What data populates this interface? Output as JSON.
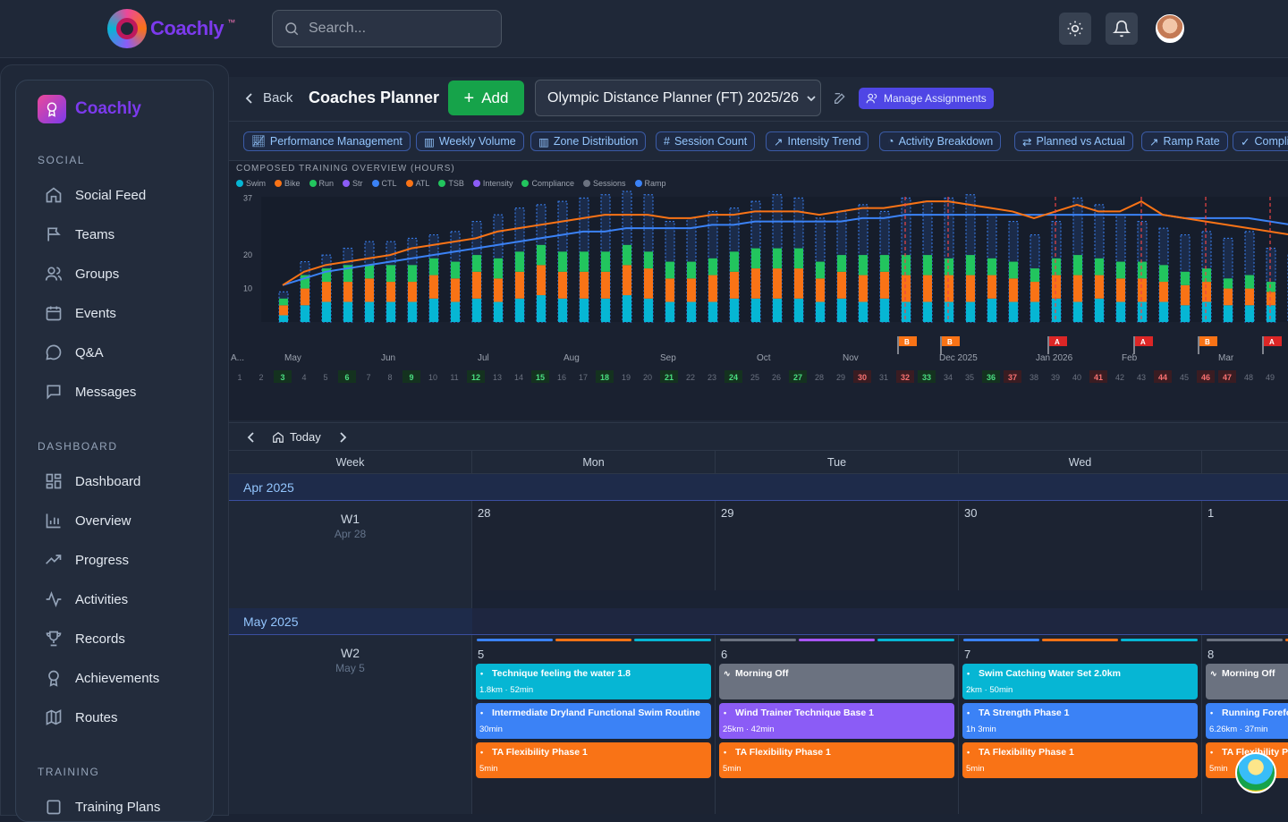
{
  "app": {
    "name": "Coachly",
    "tm": "™"
  },
  "search": {
    "placeholder": "Search..."
  },
  "sidebar": {
    "brand": "Coachly",
    "sections": [
      {
        "title": "SOCIAL",
        "items": [
          "Social Feed",
          "Teams",
          "Groups",
          "Events",
          "Q&A",
          "Messages"
        ]
      },
      {
        "title": "DASHBOARD",
        "items": [
          "Dashboard",
          "Overview",
          "Progress",
          "Activities",
          "Records",
          "Achievements",
          "Routes"
        ]
      },
      {
        "title": "TRAINING",
        "items": [
          "Training Plans"
        ]
      }
    ]
  },
  "planner": {
    "back_label": "Back",
    "title": "Coaches Planner",
    "add_label": "Add",
    "selected_plan": "Olympic Distance Planner (FT) 2025/26",
    "manage_label": "Manage Assignments"
  },
  "chips": [
    "Performance Management",
    "Weekly Volume",
    "Zone Distribution",
    "Session Count",
    "Intensity Trend",
    "Activity Breakdown",
    "Planned vs Actual",
    "Ramp Rate",
    "Compliance"
  ],
  "chart_data": {
    "type": "bar",
    "title": "COMPOSED TRAINING OVERVIEW (HOURS)",
    "legend": [
      {
        "name": "Swim",
        "color": "#06b6d4"
      },
      {
        "name": "Bike",
        "color": "#f97316"
      },
      {
        "name": "Run",
        "color": "#22c55e"
      },
      {
        "name": "Str",
        "color": "#8b5cf6"
      },
      {
        "name": "CTL",
        "color": "#3b82f6"
      },
      {
        "name": "ATL",
        "color": "#f97316"
      },
      {
        "name": "TSB",
        "color": "#22c55e"
      },
      {
        "name": "Intensity",
        "color": "#8b5cf6"
      },
      {
        "name": "Compliance",
        "color": "#22c55e"
      },
      {
        "name": "Sessions",
        "color": "#6b7280"
      },
      {
        "name": "Ramp",
        "color": "#3b82f6"
      }
    ],
    "yticks": [
      37,
      20,
      10
    ],
    "ylim": [
      0,
      40
    ],
    "weeks": [
      1,
      2,
      3,
      4,
      5,
      6,
      7,
      8,
      9,
      10,
      11,
      12,
      13,
      14,
      15,
      16,
      17,
      18,
      19,
      20,
      21,
      22,
      23,
      24,
      25,
      26,
      27,
      28,
      29,
      30,
      31,
      32,
      33,
      34,
      35,
      36,
      37,
      38,
      39,
      40,
      41,
      42,
      43,
      44,
      45,
      46,
      47,
      48,
      49
    ],
    "planned": [
      9,
      18,
      20,
      22,
      24,
      24,
      25,
      26,
      27,
      30,
      32,
      34,
      35,
      36,
      37,
      38,
      39,
      38,
      30,
      31,
      33,
      34,
      36,
      38,
      37,
      31,
      33,
      35,
      33,
      37,
      36,
      37,
      38,
      32,
      30,
      26,
      30,
      37,
      35,
      32,
      30,
      28,
      26,
      27,
      25,
      27,
      22,
      20,
      20
    ],
    "swim": [
      2,
      5,
      6,
      6,
      6,
      6,
      6,
      7,
      6,
      7,
      6,
      7,
      8,
      7,
      7,
      7,
      8,
      7,
      6,
      6,
      6,
      7,
      7,
      7,
      7,
      6,
      7,
      6,
      7,
      6,
      6,
      6,
      6,
      7,
      6,
      6,
      7,
      6,
      7,
      6,
      6,
      6,
      5,
      6,
      5,
      5,
      5,
      5,
      5
    ],
    "bike": [
      3,
      5,
      6,
      6,
      7,
      6,
      6,
      7,
      7,
      8,
      7,
      8,
      9,
      8,
      8,
      8,
      9,
      9,
      7,
      7,
      8,
      8,
      9,
      9,
      9,
      7,
      8,
      8,
      8,
      8,
      8,
      8,
      8,
      7,
      7,
      6,
      7,
      8,
      7,
      7,
      7,
      6,
      6,
      6,
      5,
      5,
      4,
      4,
      4
    ],
    "run": [
      2,
      4,
      4,
      5,
      4,
      5,
      5,
      5,
      5,
      5,
      6,
      6,
      6,
      6,
      6,
      6,
      6,
      5,
      5,
      5,
      5,
      6,
      6,
      6,
      6,
      5,
      5,
      6,
      5,
      6,
      6,
      5,
      6,
      5,
      5,
      4,
      5,
      6,
      5,
      5,
      5,
      5,
      4,
      4,
      3,
      4,
      3,
      3,
      3
    ],
    "ctl": [
      11,
      13,
      15,
      16,
      17,
      18,
      19,
      20,
      21,
      22,
      23,
      24,
      25,
      26,
      27,
      27,
      28,
      28,
      28,
      28,
      29,
      29,
      30,
      30,
      30,
      30,
      30,
      31,
      31,
      32,
      32,
      32,
      32,
      32,
      32,
      32,
      32,
      32,
      32,
      32,
      32,
      32,
      31,
      31,
      31,
      31,
      30,
      29,
      28
    ],
    "atl": [
      11,
      15,
      17,
      18,
      19,
      20,
      22,
      23,
      24,
      25,
      27,
      28,
      29,
      30,
      31,
      32,
      32,
      32,
      31,
      31,
      32,
      32,
      33,
      33,
      33,
      32,
      33,
      34,
      34,
      35,
      36,
      36,
      35,
      34,
      33,
      31,
      33,
      35,
      33,
      33,
      36,
      32,
      31,
      30,
      29,
      28,
      27,
      26,
      26
    ],
    "sessions_x_labels": [
      "A...",
      "May",
      "Jun",
      "Jul",
      "Aug",
      "Sep",
      "Oct",
      "Nov",
      "Dec 2025",
      "Jan 2026",
      "Feb",
      "Mar"
    ],
    "flags": [
      {
        "week": 30,
        "label": "B"
      },
      {
        "week": 32,
        "label": "B"
      },
      {
        "week": 37,
        "label": "A"
      },
      {
        "week": 41,
        "label": "A"
      },
      {
        "week": 44,
        "label": "B"
      },
      {
        "week": 47,
        "label": "A"
      }
    ],
    "highlight_weeks_green": [
      3,
      6,
      9,
      12,
      15,
      18,
      21,
      24,
      27,
      33,
      36
    ],
    "highlight_weeks_red": [
      30,
      32,
      37,
      41,
      44,
      46,
      47
    ]
  },
  "calendar": {
    "today_label": "Today",
    "headers": [
      "Week",
      "Mon",
      "Tue",
      "Wed",
      ""
    ],
    "months": [
      "Apr 2025",
      "May 2025"
    ],
    "weeks": [
      {
        "label": "W1",
        "date": "Apr 28",
        "days": [
          "28",
          "29",
          "30",
          "1"
        ]
      },
      {
        "label": "W2",
        "date": "May 5",
        "days": [
          "5",
          "6",
          "7",
          "8"
        ]
      }
    ],
    "workouts": {
      "mon": [
        {
          "title": "Technique feeling the water 1.8",
          "meta": "1.8km · 52min",
          "color": "#06b6d4"
        },
        {
          "title": "Intermediate Dryland Functional Swim Routine",
          "meta": "30min",
          "color": "#3b82f6"
        },
        {
          "title": "TA Flexibility Phase 1",
          "meta": "5min",
          "color": "#f97316"
        }
      ],
      "tue": [
        {
          "title": "Morning Off",
          "meta": "",
          "color": "#6b7280"
        },
        {
          "title": "Wind Trainer Technique Base 1",
          "meta": "25km · 42min",
          "color": "#8b5cf6"
        },
        {
          "title": "TA Flexibility Phase 1",
          "meta": "5min",
          "color": "#f97316"
        }
      ],
      "wed": [
        {
          "title": "Swim Catching Water Set 2.0km",
          "meta": "2km · 50min",
          "color": "#06b6d4"
        },
        {
          "title": "TA Strength Phase 1",
          "meta": "1h 3min",
          "color": "#3b82f6"
        },
        {
          "title": "TA Flexibility Phase 1",
          "meta": "5min",
          "color": "#f97316"
        }
      ],
      "thu": [
        {
          "title": "Morning Off",
          "meta": "",
          "color": "#6b7280"
        },
        {
          "title": "Running Forefo",
          "meta": "6.26km · 37min",
          "color": "#3b82f6"
        },
        {
          "title": "TA Flexibility P",
          "meta": "5min",
          "color": "#f97316"
        }
      ]
    }
  }
}
